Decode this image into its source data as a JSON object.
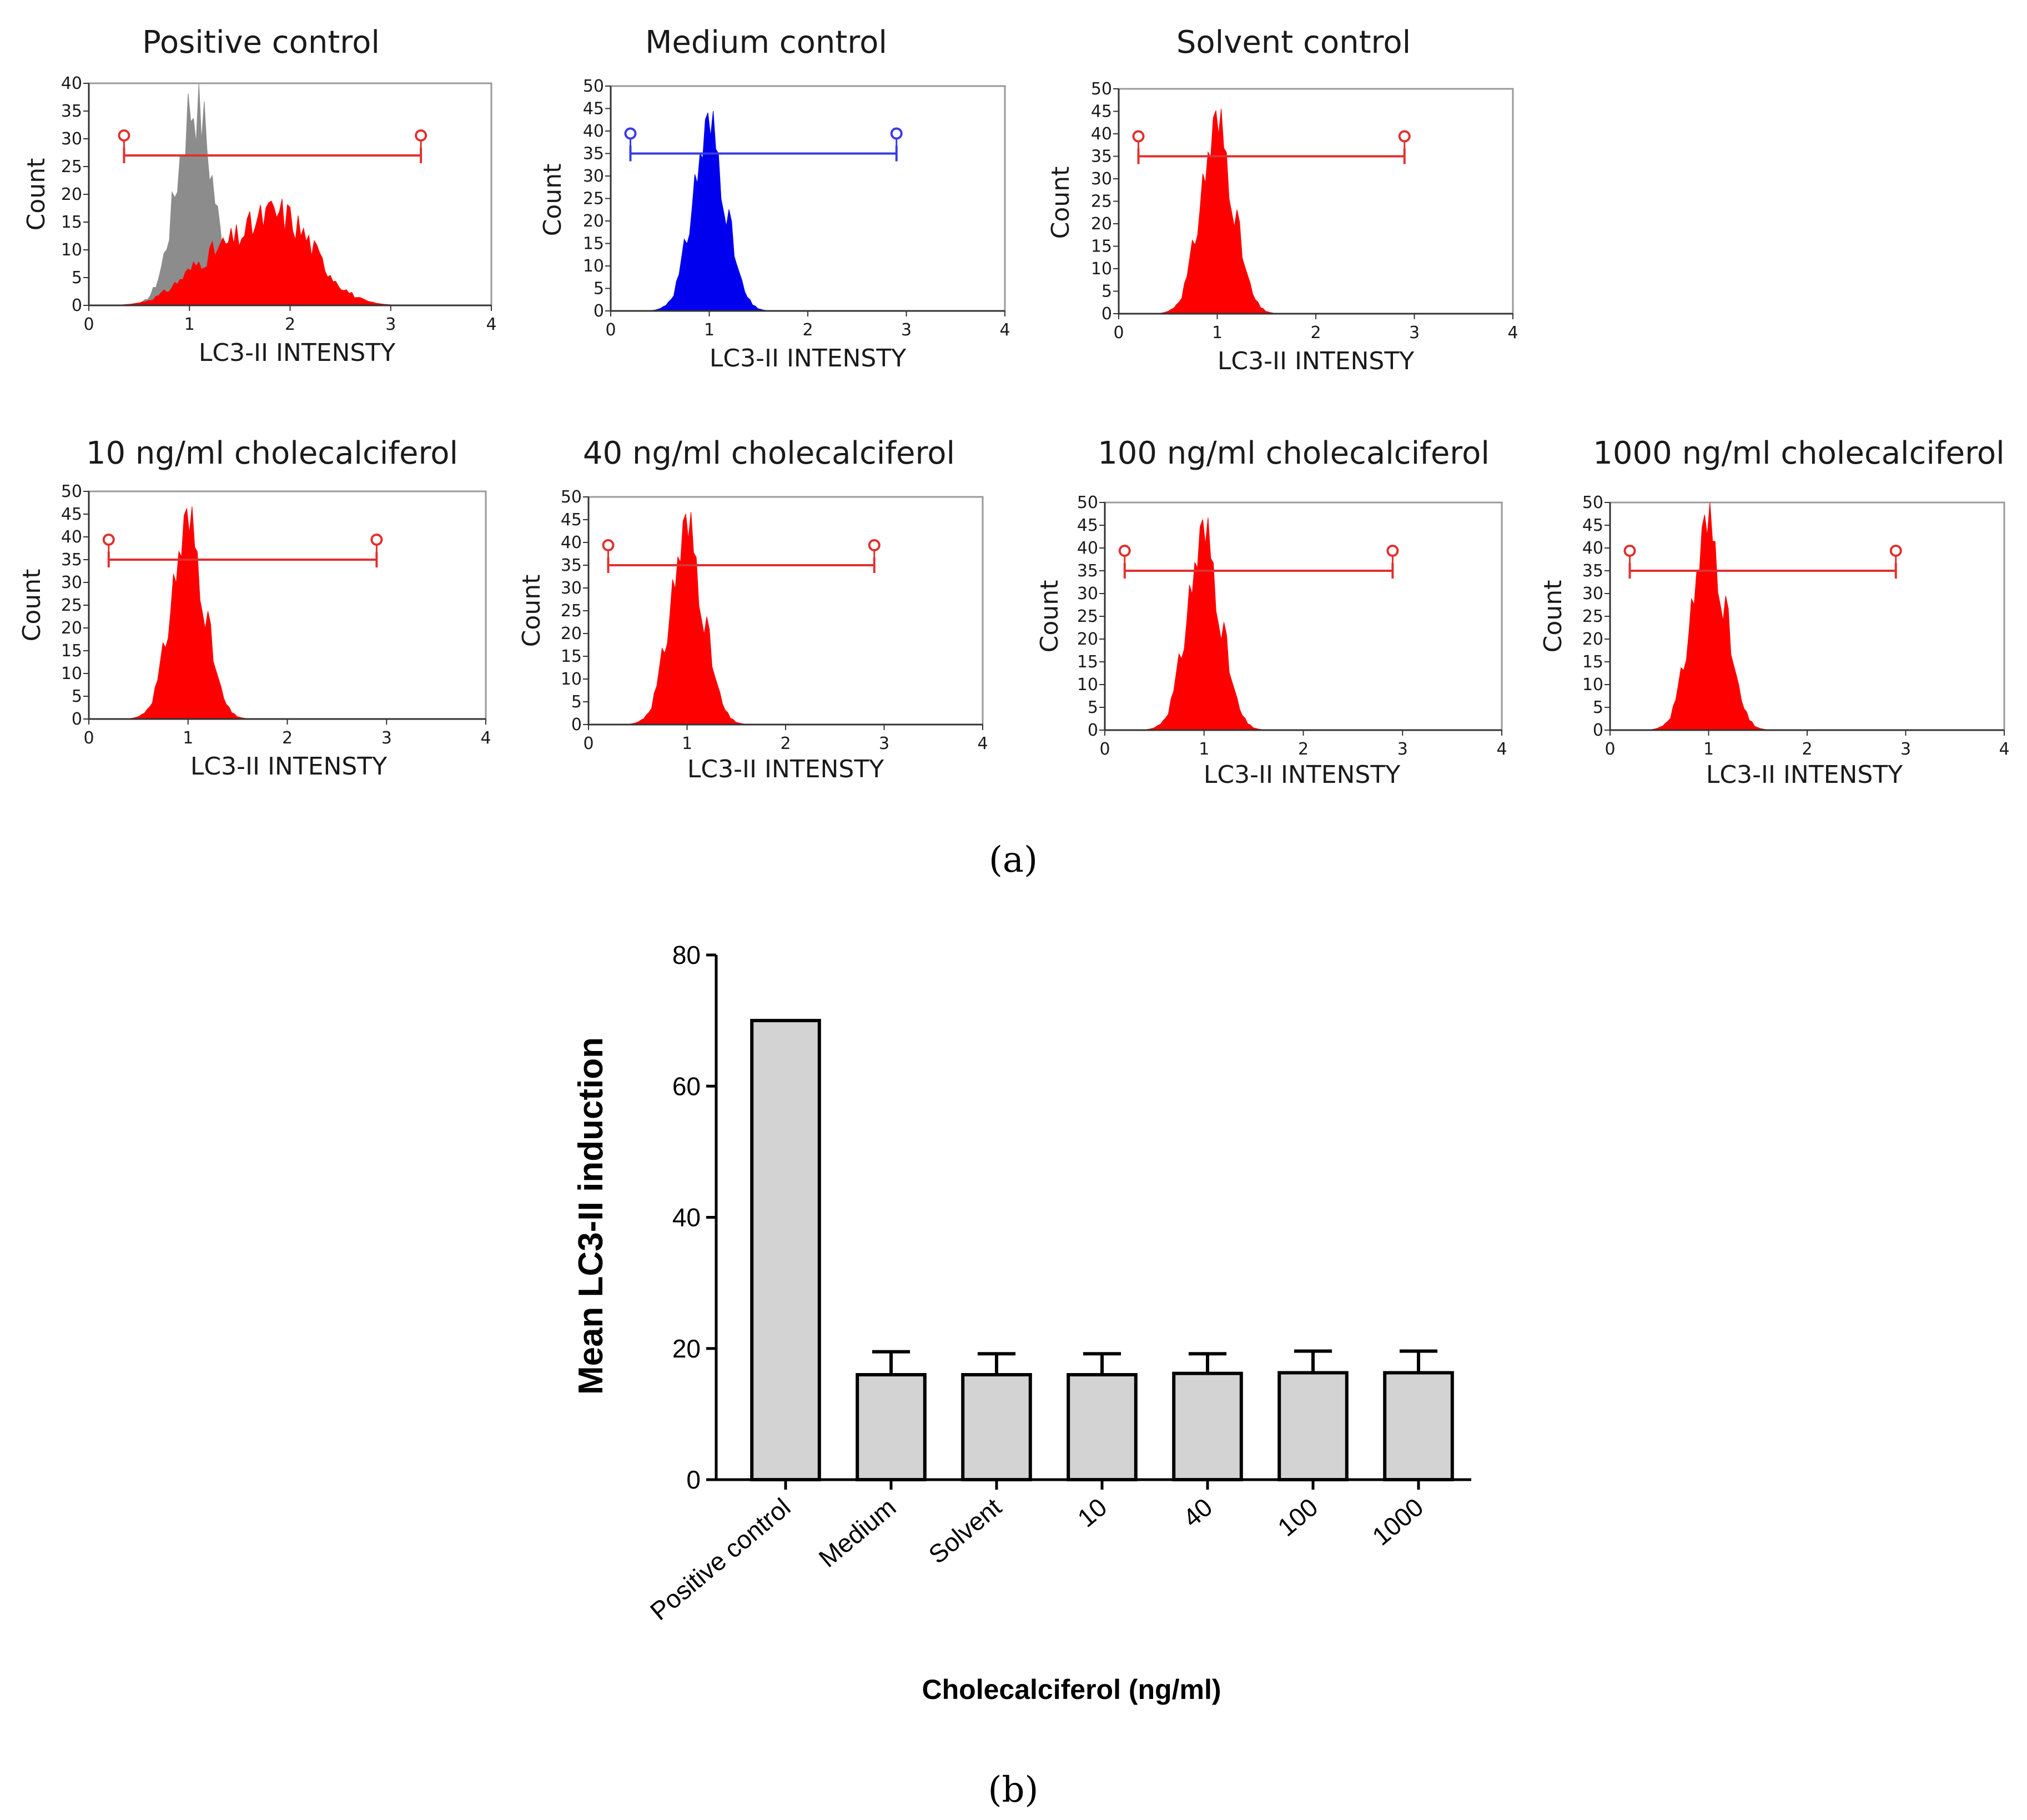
{
  "figure": {
    "caption_a": "(a)",
    "caption_b": "(b)"
  },
  "colors": {
    "red": "#ff0000",
    "grey": "#8c8c8c",
    "blue": "#0000ee",
    "gate_red": "#e03030",
    "gate_blue": "#3a3ae6",
    "bar_fill": "#d3d3d3"
  },
  "chart_data": [
    {
      "type": "histogram",
      "id": "positive",
      "title": "Positive control",
      "xlabel": "LC3-II INTENSTY",
      "ylabel": "Count",
      "xlim": [
        0,
        4
      ],
      "ylim": [
        0,
        40
      ],
      "xticks": [
        "0",
        "1",
        "2",
        "3",
        "4"
      ],
      "yticks": [
        "0",
        "5",
        "10",
        "15",
        "20",
        "25",
        "30",
        "35",
        "40"
      ],
      "gate": [
        0.35,
        3.3
      ],
      "gate_level": 27,
      "gate_color": "red",
      "overlay": {
        "color": "grey",
        "mean": 1.05,
        "sd": 0.18,
        "peak": 37
      },
      "series": [
        {
          "color": "red",
          "components": [
            {
              "mean": 1.2,
              "sd": 0.3,
              "peak": 7
            },
            {
              "mean": 1.9,
              "sd": 0.35,
              "peak": 16
            }
          ]
        }
      ]
    },
    {
      "type": "histogram",
      "id": "medium",
      "title": "Medium control",
      "xlabel": "LC3-II INTENSTY",
      "ylabel": "Count",
      "xlim": [
        0,
        4
      ],
      "ylim": [
        0,
        50
      ],
      "xticks": [
        "0",
        "1",
        "2",
        "3",
        "4"
      ],
      "yticks": [
        "0",
        "5",
        "10",
        "15",
        "20",
        "25",
        "30",
        "35",
        "40",
        "45",
        "50"
      ],
      "gate": [
        0.2,
        2.9
      ],
      "gate_level": 35,
      "gate_color": "blue",
      "series": [
        {
          "color": "blue",
          "components": [
            {
              "mean": 1.0,
              "sd": 0.17,
              "peak": 40
            }
          ]
        }
      ]
    },
    {
      "type": "histogram",
      "id": "solvent",
      "title": "Solvent control",
      "xlabel": "LC3-II INTENSTY",
      "ylabel": "Count",
      "xlim": [
        0,
        4
      ],
      "ylim": [
        0,
        50
      ],
      "xticks": [
        "0",
        "1",
        "2",
        "3",
        "4"
      ],
      "yticks": [
        "0",
        "5",
        "10",
        "15",
        "20",
        "25",
        "30",
        "35",
        "40",
        "45",
        "50"
      ],
      "gate": [
        0.2,
        2.9
      ],
      "gate_level": 35,
      "gate_color": "red",
      "series": [
        {
          "color": "red",
          "components": [
            {
              "mean": 1.0,
              "sd": 0.17,
              "peak": 41
            }
          ]
        }
      ]
    },
    {
      "type": "histogram",
      "id": "c10",
      "title": "10 ng/ml cholecalciferol",
      "xlabel": "LC3-II INTENSTY",
      "ylabel": "Count",
      "xlim": [
        0,
        4
      ],
      "ylim": [
        0,
        50
      ],
      "xticks": [
        "0",
        "1",
        "2",
        "3",
        "4"
      ],
      "yticks": [
        "0",
        "5",
        "10",
        "15",
        "20",
        "25",
        "30",
        "35",
        "40",
        "45",
        "50"
      ],
      "gate": [
        0.2,
        2.9
      ],
      "gate_level": 35,
      "gate_color": "red",
      "series": [
        {
          "color": "red",
          "components": [
            {
              "mean": 1.0,
              "sd": 0.17,
              "peak": 42
            }
          ]
        }
      ]
    },
    {
      "type": "histogram",
      "id": "c40",
      "title": "40 ng/ml cholecalciferol",
      "xlabel": "LC3-II INTENSTY",
      "ylabel": "Count",
      "xlim": [
        0,
        4
      ],
      "ylim": [
        0,
        50
      ],
      "xticks": [
        "0",
        "1",
        "2",
        "3",
        "4"
      ],
      "yticks": [
        "0",
        "5",
        "10",
        "15",
        "20",
        "25",
        "30",
        "35",
        "40",
        "45",
        "50"
      ],
      "gate": [
        0.2,
        2.9
      ],
      "gate_level": 35,
      "gate_color": "red",
      "series": [
        {
          "color": "red",
          "components": [
            {
              "mean": 1.0,
              "sd": 0.17,
              "peak": 42
            }
          ]
        }
      ]
    },
    {
      "type": "histogram",
      "id": "c100",
      "title": "100 ng/ml cholecalciferol",
      "xlabel": "LC3-II INTENSTY",
      "ylabel": "Count",
      "xlim": [
        0,
        4
      ],
      "ylim": [
        0,
        50
      ],
      "xticks": [
        "0",
        "1",
        "2",
        "3",
        "4"
      ],
      "yticks": [
        "0",
        "5",
        "10",
        "15",
        "20",
        "25",
        "30",
        "35",
        "40",
        "45",
        "50"
      ],
      "gate": [
        0.2,
        2.9
      ],
      "gate_level": 35,
      "gate_color": "red",
      "series": [
        {
          "color": "red",
          "components": [
            {
              "mean": 1.0,
              "sd": 0.17,
              "peak": 42
            }
          ]
        }
      ]
    },
    {
      "type": "histogram",
      "id": "c1000",
      "title": "1000 ng/ml cholecalciferol",
      "xlabel": "LC3-II INTENSTY",
      "ylabel": "Count",
      "xlim": [
        0,
        4
      ],
      "ylim": [
        0,
        50
      ],
      "xticks": [
        "0",
        "1",
        "2",
        "3",
        "4"
      ],
      "yticks": [
        "0",
        "5",
        "10",
        "15",
        "20",
        "25",
        "30",
        "35",
        "40",
        "45",
        "50"
      ],
      "gate": [
        0.2,
        2.9
      ],
      "gate_level": 35,
      "gate_color": "red",
      "series": [
        {
          "color": "red",
          "components": [
            {
              "mean": 1.0,
              "sd": 0.17,
              "peak": 44
            }
          ]
        }
      ]
    },
    {
      "type": "bar",
      "id": "meanbar",
      "title": "",
      "xlabel": "Cholecalciferol (ng/ml)",
      "ylabel": "Mean LC3-II induction",
      "categories": [
        "Positive control",
        "Medium",
        "Solvent",
        "10",
        "40",
        "100",
        "1000"
      ],
      "values": [
        70,
        16,
        16,
        16,
        16.2,
        16.3,
        16.3
      ],
      "errors": [
        0,
        3.5,
        3.2,
        3.2,
        3.0,
        3.3,
        3.3
      ],
      "ylim": [
        0,
        80
      ],
      "yticks": [
        "0",
        "20",
        "40",
        "60",
        "80"
      ]
    }
  ]
}
